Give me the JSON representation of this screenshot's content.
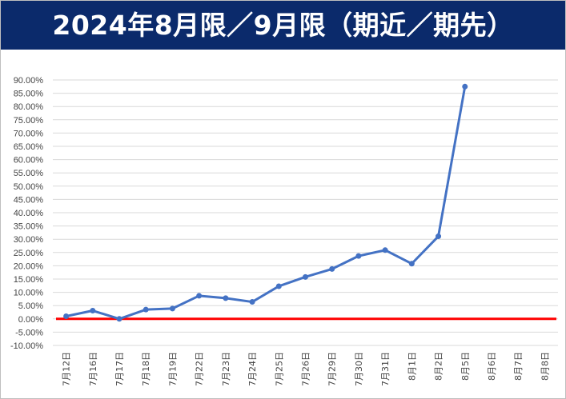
{
  "title": "2024年8月限／9月限（期近／期先）",
  "colors": {
    "banner_bg": "#0b2a6b",
    "series": "#4472c4",
    "zero_line": "#ff0000",
    "grid": "#d9d9d9"
  },
  "chart_data": {
    "type": "line",
    "title": "2024年8月限／9月限（期近／期先）",
    "xlabel": "",
    "ylabel": "",
    "ylim": [
      -0.1,
      0.9
    ],
    "ystep": 0.05,
    "grid": true,
    "categories": [
      "7月12日",
      "7月16日",
      "7月17日",
      "7月18日",
      "7月19日",
      "7月22日",
      "7月23日",
      "7月24日",
      "7月25日",
      "7月26日",
      "7月29日",
      "7月30日",
      "7月31日",
      "8月1日",
      "8月2日",
      "8月5日",
      "8月6日",
      "8月7日",
      "8月8日"
    ],
    "y_tick_labels": [
      "90.00%",
      "85.00%",
      "80.00%",
      "75.00%",
      "70.00%",
      "65.00%",
      "60.00%",
      "55.00%",
      "50.00%",
      "45.00%",
      "40.00%",
      "35.00%",
      "30.00%",
      "25.00%",
      "20.00%",
      "15.00%",
      "10.00%",
      "5.00%",
      "0.00%",
      "-5.00%",
      "-10.00%"
    ],
    "series": [
      {
        "values": [
          0.01,
          0.031,
          0.0,
          0.035,
          0.039,
          0.087,
          0.078,
          0.064,
          0.123,
          0.158,
          0.188,
          0.237,
          0.259,
          0.208,
          0.311,
          0.875,
          null,
          null,
          null
        ]
      }
    ],
    "reference_line": {
      "y": 0.0
    }
  }
}
